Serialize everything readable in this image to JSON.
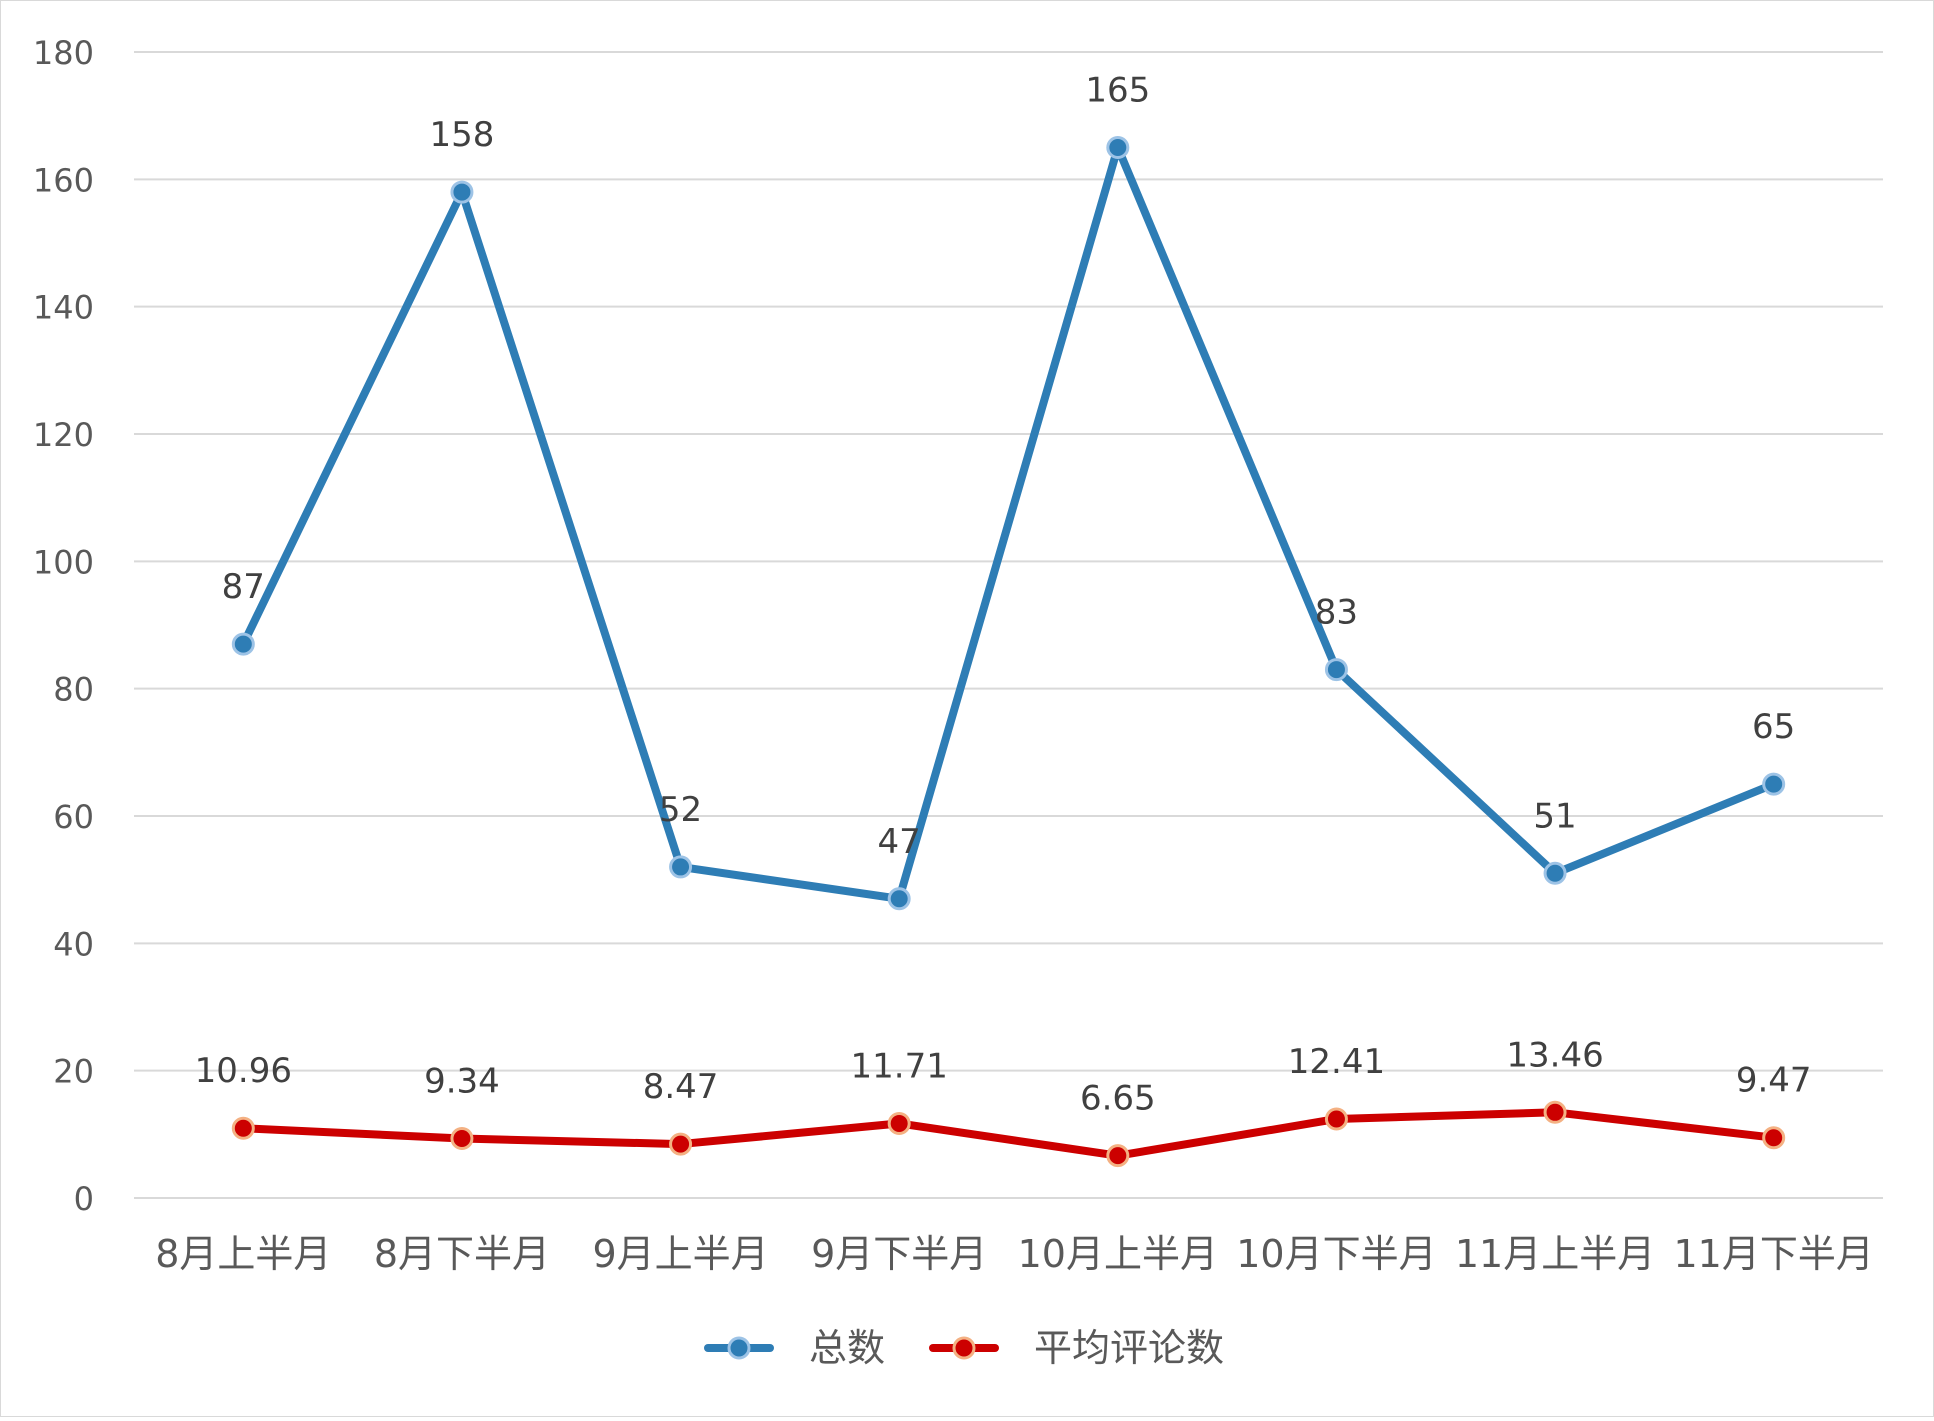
{
  "chart_data": {
    "type": "line",
    "title": "",
    "xlabel": "",
    "ylabel": "",
    "categories": [
      "8月上半月",
      "8月下半月",
      "9月上半月",
      "9月下半月",
      "10月上半月",
      "10月下半月",
      "11月上半月",
      "11月下半月"
    ],
    "ylim": [
      0,
      180
    ],
    "yticks": [
      0,
      20,
      40,
      60,
      80,
      100,
      120,
      140,
      160,
      180
    ],
    "grid": true,
    "legend_position": "bottom",
    "series": [
      {
        "name": "总数",
        "color": "#2e7db5",
        "values": [
          87,
          158,
          52,
          47,
          165,
          83,
          51,
          65
        ],
        "labels": [
          "87",
          "158",
          "52",
          "47",
          "165",
          "83",
          "51",
          "65"
        ]
      },
      {
        "name": "平均评论数",
        "color": "#cc0000",
        "marker_edge": "#f4b183",
        "values": [
          10.96,
          9.34,
          8.47,
          11.71,
          6.65,
          12.41,
          13.46,
          9.47
        ],
        "labels": [
          "10.96",
          "9.34",
          "8.47",
          "11.71",
          "6.65",
          "12.41",
          "13.46",
          "9.47"
        ]
      }
    ]
  }
}
